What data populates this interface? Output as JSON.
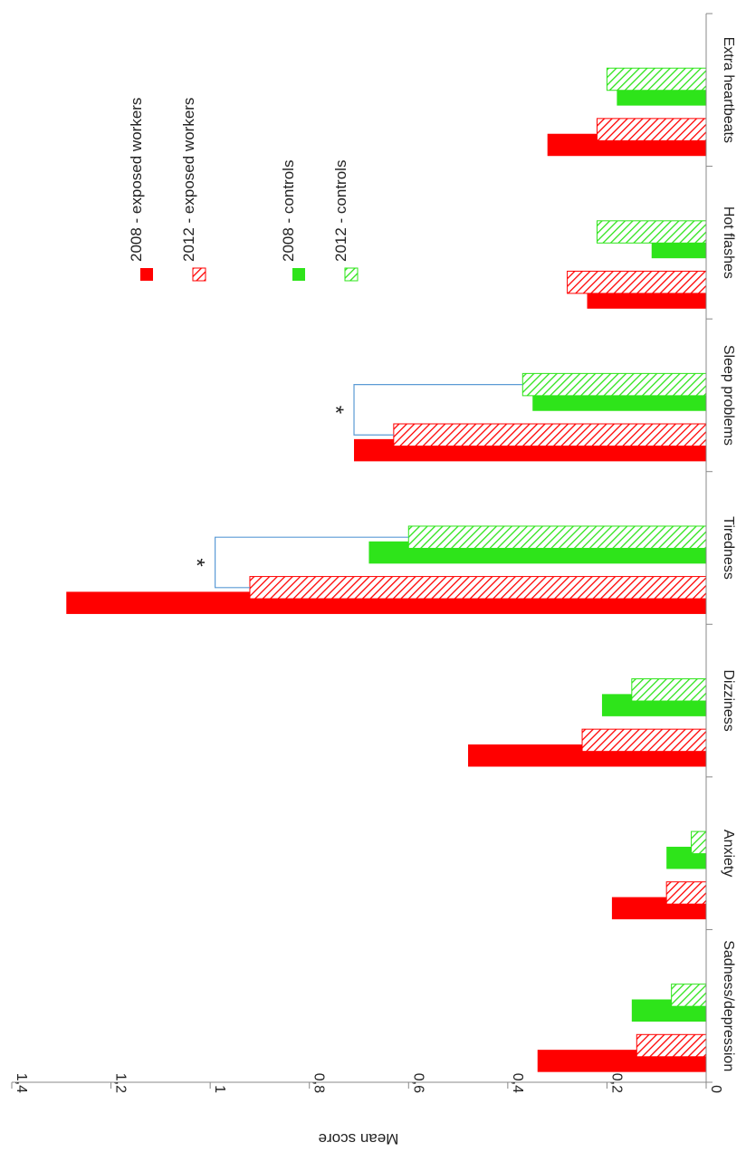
{
  "chart_data": {
    "type": "bar",
    "orientation": "rotated-90-clockwise",
    "ylabel": "Mean score",
    "xlabel": "",
    "ylim": [
      0,
      1.4
    ],
    "yticks": [
      "0",
      "0,2",
      "0,4",
      "0,6",
      "0,8",
      "1",
      "1,2",
      "1,4"
    ],
    "categories": [
      "Extra heartbeats",
      "Hot flashes",
      "Sleep problems",
      "Tiredness",
      "Dizziness",
      "Anxiety",
      "Sadness/depression"
    ],
    "series": [
      {
        "name": "2008 - exposed workers",
        "color": "#ff0000",
        "pattern": "solid",
        "values": [
          0.32,
          0.24,
          0.71,
          1.29,
          0.48,
          0.19,
          0.34
        ]
      },
      {
        "name": "2012 - exposed workers",
        "color": "#ff0000",
        "pattern": "hatched",
        "values": [
          0.22,
          0.28,
          0.63,
          0.92,
          0.25,
          0.08,
          0.14
        ]
      },
      {
        "name": "2008 - controls",
        "color": "#2ee41a",
        "pattern": "solid",
        "values": [
          0.18,
          0.11,
          0.35,
          0.68,
          0.21,
          0.08,
          0.15
        ]
      },
      {
        "name": "2012 - controls",
        "color": "#2ee41a",
        "pattern": "hatched",
        "values": [
          0.2,
          0.22,
          0.37,
          0.6,
          0.15,
          0.03,
          0.07
        ]
      }
    ],
    "annotations": [
      {
        "text": "*",
        "category": "Sleep problems",
        "bracket": [
          "2012 - exposed workers",
          "2012 - controls"
        ],
        "bracket_level": 0.71
      },
      {
        "text": "*",
        "category": "Tiredness",
        "bracket": [
          "2012 - exposed workers",
          "2012 - controls"
        ],
        "bracket_level": 0.99
      }
    ],
    "legend_position": "top-right",
    "grid": false,
    "colors": {
      "exposed": "#ff0000",
      "controls": "#2ee41a",
      "bracket": "#5b9bd5",
      "axis": "#888888"
    }
  }
}
